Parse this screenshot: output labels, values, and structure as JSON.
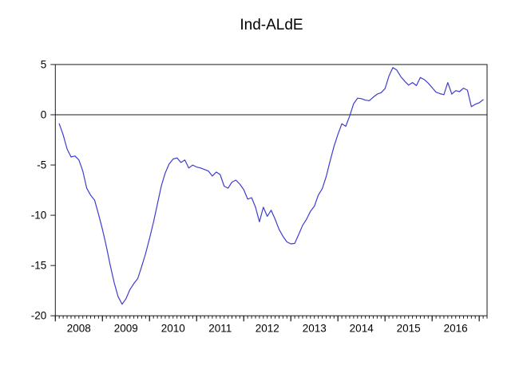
{
  "title": "Ind-ALdE",
  "chart_data": {
    "type": "line",
    "title": "Ind-ALdE",
    "grid": false,
    "legend": "none",
    "zero_line": true,
    "ylim": [
      -20,
      5
    ],
    "y_ticks": [
      5,
      0,
      -5,
      -10,
      -15,
      -20
    ],
    "x_axis": {
      "year_labels": [
        "2008",
        "2009",
        "2010",
        "2011",
        "2012",
        "2013",
        "2014",
        "2015",
        "2016"
      ],
      "minor_ticks": "monthly"
    },
    "series": [
      {
        "name": "Ind-ALdE",
        "start": "2008M01",
        "frequency": "monthly",
        "color": "#3d3dcf",
        "values": [
          -0.9,
          -2.0,
          -3.4,
          -4.2,
          -4.1,
          -4.5,
          -5.6,
          -7.3,
          -8.0,
          -8.5,
          -9.9,
          -11.4,
          -13.1,
          -15.0,
          -16.7,
          -18.1,
          -18.85,
          -18.3,
          -17.4,
          -16.8,
          -16.3,
          -15.1,
          -13.8,
          -12.3,
          -10.7,
          -8.9,
          -7.1,
          -5.8,
          -4.9,
          -4.4,
          -4.3,
          -4.75,
          -4.5,
          -5.3,
          -5.0,
          -5.2,
          -5.3,
          -5.45,
          -5.6,
          -6.1,
          -5.7,
          -5.95,
          -7.1,
          -7.3,
          -6.7,
          -6.5,
          -6.9,
          -7.45,
          -8.4,
          -8.25,
          -9.2,
          -10.65,
          -9.2,
          -10.1,
          -9.5,
          -10.4,
          -11.4,
          -12.1,
          -12.65,
          -12.85,
          -12.8,
          -11.9,
          -11.0,
          -10.4,
          -9.6,
          -9.1,
          -8.0,
          -7.35,
          -6.15,
          -4.6,
          -3.15,
          -1.95,
          -0.9,
          -1.15,
          -0.1,
          1.1,
          1.65,
          1.6,
          1.45,
          1.4,
          1.75,
          2.05,
          2.2,
          2.6,
          3.85,
          4.7,
          4.45,
          3.8,
          3.35,
          2.95,
          3.2,
          2.9,
          3.7,
          3.5,
          3.15,
          2.7,
          2.25,
          2.1,
          2.0,
          3.2,
          2.05,
          2.4,
          2.3,
          2.65,
          2.45,
          0.8,
          1.05,
          1.2,
          1.5
        ]
      }
    ],
    "colors": {
      "line": "#3d3dcf",
      "axis": "#1a1a1a",
      "text": "#000000",
      "background": "#ffffff"
    }
  }
}
